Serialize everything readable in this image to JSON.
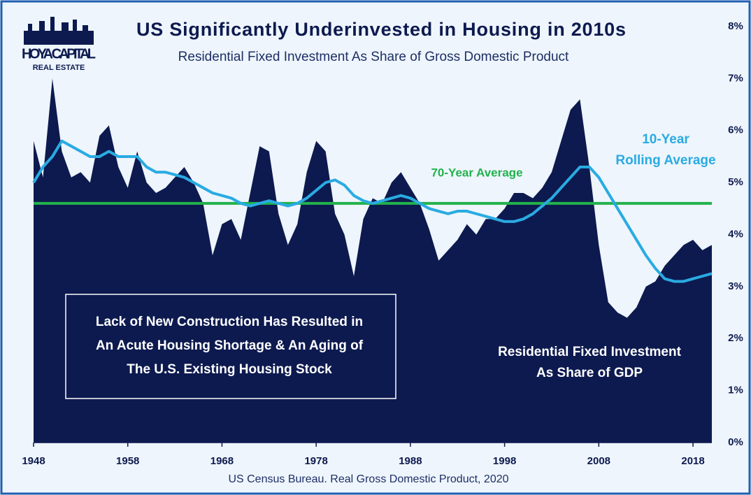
{
  "chart_data": {
    "type": "area_line",
    "title": "US Significantly Underinvested in Housing in 2010s",
    "subtitle": "Residential Fixed Investment As Share of Gross Domestic Product",
    "source": "US Census Bureau. Real Gross Domestic Product, 2020",
    "logo": {
      "name": "HOYA CAPITAL",
      "tagline": "REAL ESTATE"
    },
    "x": [
      1948,
      1949,
      1950,
      1951,
      1952,
      1953,
      1954,
      1955,
      1956,
      1957,
      1958,
      1959,
      1960,
      1961,
      1962,
      1963,
      1964,
      1965,
      1966,
      1967,
      1968,
      1969,
      1970,
      1971,
      1972,
      1973,
      1974,
      1975,
      1976,
      1977,
      1978,
      1979,
      1980,
      1981,
      1982,
      1983,
      1984,
      1985,
      1986,
      1987,
      1988,
      1989,
      1990,
      1991,
      1992,
      1993,
      1994,
      1995,
      1996,
      1997,
      1998,
      1999,
      2000,
      2001,
      2002,
      2003,
      2004,
      2005,
      2006,
      2007,
      2008,
      2009,
      2010,
      2011,
      2012,
      2013,
      2014,
      2015,
      2016,
      2017,
      2018,
      2019,
      2020
    ],
    "series": [
      {
        "kind": "area",
        "label_lines": [
          "Residential Fixed Investment",
          "As Share of GDP"
        ],
        "color": "#0d1a4f",
        "values": [
          5.8,
          5.1,
          7.0,
          5.6,
          5.1,
          5.2,
          5.0,
          5.9,
          6.1,
          5.3,
          4.9,
          5.6,
          5.0,
          4.8,
          4.9,
          5.1,
          5.3,
          5.0,
          4.6,
          3.6,
          4.2,
          4.3,
          3.9,
          4.8,
          5.7,
          5.6,
          4.4,
          3.8,
          4.2,
          5.2,
          5.8,
          5.6,
          4.4,
          4.0,
          3.2,
          4.3,
          4.7,
          4.6,
          5.0,
          5.2,
          4.9,
          4.6,
          4.1,
          3.5,
          3.7,
          3.9,
          4.2,
          4.0,
          4.3,
          4.3,
          4.5,
          4.8,
          4.8,
          4.7,
          4.9,
          5.2,
          5.8,
          6.4,
          6.6,
          5.3,
          3.8,
          2.7,
          2.5,
          2.4,
          2.6,
          3.0,
          3.1,
          3.4,
          3.6,
          3.8,
          3.9,
          3.7,
          3.8
        ]
      },
      {
        "kind": "line",
        "label_lines": [
          "10-Year",
          "Rolling Average"
        ],
        "color": "#29abe2",
        "values": [
          5.0,
          5.3,
          5.5,
          5.8,
          5.7,
          5.6,
          5.5,
          5.5,
          5.6,
          5.5,
          5.5,
          5.5,
          5.3,
          5.2,
          5.2,
          5.15,
          5.1,
          5.0,
          4.9,
          4.8,
          4.75,
          4.7,
          4.6,
          4.55,
          4.6,
          4.65,
          4.6,
          4.55,
          4.6,
          4.7,
          4.85,
          5.0,
          5.05,
          4.95,
          4.75,
          4.65,
          4.6,
          4.65,
          4.7,
          4.75,
          4.7,
          4.6,
          4.5,
          4.45,
          4.4,
          4.45,
          4.45,
          4.4,
          4.35,
          4.3,
          4.25,
          4.25,
          4.3,
          4.4,
          4.55,
          4.7,
          4.9,
          5.1,
          5.3,
          5.3,
          5.1,
          4.8,
          4.5,
          4.2,
          3.9,
          3.6,
          3.35,
          3.15,
          3.1,
          3.1,
          3.15,
          3.2,
          3.25
        ]
      }
    ],
    "reference_line": {
      "value": 4.6,
      "label": "70-Year Average",
      "color": "#22b24c"
    },
    "callout": [
      "Lack of New Construction Has Resulted in",
      "An Acute Housing Shortage & An Aging of",
      "The U.S. Existing Housing Stock"
    ],
    "xlim": [
      1948,
      2020
    ],
    "xticks": [
      1948,
      1958,
      1968,
      1978,
      1988,
      1998,
      2008,
      2018
    ],
    "ylim": [
      0,
      8
    ],
    "yticks": [
      {
        "value": 0,
        "label": "0%"
      },
      {
        "value": 1,
        "label": "1%"
      },
      {
        "value": 2,
        "label": "2%"
      },
      {
        "value": 3,
        "label": "3%"
      },
      {
        "value": 4,
        "label": "4%"
      },
      {
        "value": 5,
        "label": "5%"
      },
      {
        "value": 6,
        "label": "6%"
      },
      {
        "value": 7,
        "label": "7%"
      },
      {
        "value": 8,
        "label": "8%"
      }
    ]
  }
}
